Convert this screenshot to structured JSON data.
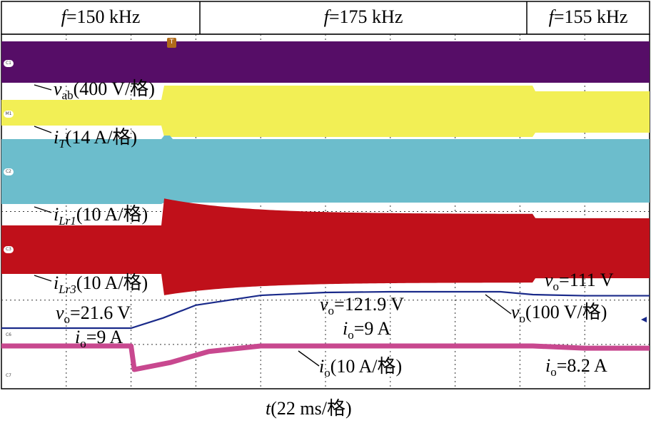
{
  "header": {
    "segments": [
      {
        "prefix": "f",
        "text": "=150 kHz"
      },
      {
        "prefix": "f",
        "text": "=175 kHz"
      },
      {
        "prefix": "f",
        "text": "=155 kHz"
      }
    ]
  },
  "xaxis": {
    "var": "t",
    "unit": "(22 ms/格)"
  },
  "channels": [
    {
      "marker": "C1",
      "color": "#560d67",
      "var": "v",
      "sub": "ab",
      "scale": "(400 V/格)"
    },
    {
      "marker": "M1",
      "color": "#f2ef55",
      "var": "i",
      "sub": "T",
      "scale": "(14 A/格)"
    },
    {
      "marker": "C2",
      "color": "#6cbdcc",
      "var": "i",
      "sub": "Lr1",
      "scale": "(10 A/格)"
    },
    {
      "marker": "C3",
      "color": "#c0101a",
      "var": "i",
      "sub": "Lr3",
      "scale": "(10 A/格)"
    },
    {
      "marker": "C6",
      "color": "#1a2a8a",
      "var": "v",
      "sub": "o",
      "scale": "(100 V/格)"
    },
    {
      "marker": "C7",
      "color": "#c8488f",
      "var": "i",
      "sub": "o",
      "scale": "(10 A/格)"
    }
  ],
  "annotations": [
    {
      "var": "v",
      "sub": "o",
      "text": "=21.6 V"
    },
    {
      "var": "i",
      "sub": "o",
      "text": "=9 A"
    },
    {
      "var": "v",
      "sub": "o",
      "text": "=121.9 V"
    },
    {
      "var": "i",
      "sub": "o",
      "text": "=9 A"
    },
    {
      "var": "v",
      "sub": "o",
      "text": "=111 V"
    },
    {
      "var": "i",
      "sub": "o",
      "text": "=8.2 A"
    }
  ],
  "trigger_marker": "T",
  "chart_data": {
    "type": "line",
    "x_unit": "22 ms/div",
    "divisions": 10,
    "frequency_segments": [
      {
        "label": "f=150 kHz",
        "x_start_div": 0,
        "x_end_div": 2.5
      },
      {
        "label": "f=175 kHz",
        "x_start_div": 2.5,
        "x_end_div": 8.2
      },
      {
        "label": "f=155 kHz",
        "x_start_div": 8.2,
        "x_end_div": 10
      }
    ],
    "series": [
      {
        "name": "vo",
        "unit": "V",
        "x_div": [
          0,
          2.0,
          2.5,
          3.0,
          4.0,
          5.0,
          6.0,
          7.0,
          7.7,
          8.2,
          9.0,
          10.0
        ],
        "values": [
          21.6,
          21.6,
          50,
          85,
          112,
          120,
          121.9,
          121.9,
          121.9,
          114,
          111,
          111
        ]
      },
      {
        "name": "io",
        "unit": "A",
        "x_div": [
          0,
          2.0,
          2.05,
          2.6,
          3.2,
          4.0,
          5.0,
          6.0,
          8.2,
          9.0,
          10.0
        ],
        "values": [
          9,
          9,
          0.5,
          3,
          7,
          9,
          9,
          9,
          9,
          8.2,
          8.2
        ]
      }
    ]
  }
}
